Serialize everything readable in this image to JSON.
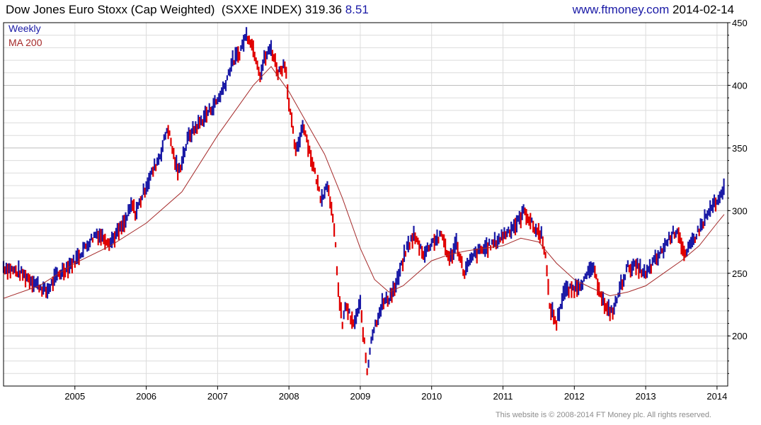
{
  "header": {
    "title": "Dow Jones Euro Stoxx (Cap Weighted)",
    "symbol": "(SXXE INDEX)",
    "last": "319.36",
    "change": "8.51",
    "site": "www.ftmoney.com",
    "date": "2014-02-14"
  },
  "legend": {
    "weekly": "Weekly",
    "ma": "MA 200"
  },
  "footer": "This website is © 2008-2014 FT Money plc. All rights reserved.",
  "colors": {
    "up": "#1a1aa6",
    "down": "#e00000",
    "ma": "#a52a2a",
    "grid": "#dcdcdc",
    "axis": "#000000"
  },
  "chart_data": {
    "type": "line",
    "title": "Dow Jones Euro Stoxx (Cap Weighted) (SXXE INDEX)",
    "ylim": [
      160,
      450
    ],
    "xlim": [
      2004.0,
      2014.15
    ],
    "y_ticks": [
      200,
      250,
      300,
      350,
      400,
      450
    ],
    "x_ticks": [
      "2005",
      "2006",
      "2007",
      "2008",
      "2009",
      "2010",
      "2011",
      "2012",
      "2013",
      "2014"
    ],
    "grid": true,
    "legend_position": "top-left",
    "series": [
      {
        "name": "Weekly",
        "style": "weekly bars (blue up, red down)",
        "x": [
          2004.0,
          2004.25,
          2004.5,
          2004.6,
          2004.75,
          2005.0,
          2005.2,
          2005.3,
          2005.5,
          2005.7,
          2005.8,
          2005.85,
          2006.0,
          2006.2,
          2006.3,
          2006.4,
          2006.45,
          2006.6,
          2006.75,
          2007.0,
          2007.1,
          2007.2,
          2007.3,
          2007.4,
          2007.45,
          2007.55,
          2007.6,
          2007.65,
          2007.75,
          2007.85,
          2007.95,
          2008.0,
          2008.1,
          2008.2,
          2008.3,
          2008.45,
          2008.55,
          2008.65,
          2008.7,
          2008.75,
          2008.8,
          2008.9,
          2009.0,
          2009.1,
          2009.15,
          2009.3,
          2009.4,
          2009.5,
          2009.65,
          2009.75,
          2009.9,
          2010.0,
          2010.15,
          2010.25,
          2010.35,
          2010.45,
          2010.6,
          2010.75,
          2010.9,
          2011.0,
          2011.1,
          2011.2,
          2011.3,
          2011.45,
          2011.55,
          2011.6,
          2011.65,
          2011.75,
          2011.85,
          2012.0,
          2012.15,
          2012.25,
          2012.35,
          2012.45,
          2012.55,
          2012.65,
          2012.75,
          2012.9,
          2013.0,
          2013.1,
          2013.2,
          2013.35,
          2013.45,
          2013.55,
          2013.65,
          2013.8,
          2013.95,
          2014.0,
          2014.05,
          2014.1
        ],
        "y": [
          255,
          250,
          240,
          235,
          248,
          260,
          275,
          282,
          275,
          290,
          305,
          298,
          320,
          345,
          367,
          340,
          330,
          360,
          370,
          388,
          400,
          418,
          425,
          440,
          438,
          420,
          408,
          420,
          430,
          410,
          418,
          385,
          345,
          370,
          345,
          310,
          322,
          275,
          230,
          210,
          225,
          208,
          225,
          170,
          198,
          225,
          230,
          240,
          270,
          280,
          265,
          275,
          280,
          260,
          275,
          250,
          265,
          270,
          275,
          280,
          285,
          290,
          300,
          285,
          280,
          262,
          225,
          210,
          235,
          238,
          245,
          255,
          238,
          220,
          220,
          240,
          255,
          255,
          248,
          258,
          265,
          280,
          285,
          262,
          275,
          290,
          305,
          305,
          310,
          318
        ]
      },
      {
        "name": "MA 200",
        "x": [
          2004.0,
          2004.5,
          2005.0,
          2005.5,
          2006.0,
          2006.5,
          2007.0,
          2007.25,
          2007.5,
          2007.75,
          2008.0,
          2008.25,
          2008.5,
          2008.75,
          2009.0,
          2009.2,
          2009.4,
          2009.6,
          2009.8,
          2010.0,
          2010.25,
          2010.5,
          2010.75,
          2011.0,
          2011.25,
          2011.5,
          2011.75,
          2012.0,
          2012.25,
          2012.5,
          2012.75,
          2013.0,
          2013.25,
          2013.5,
          2013.75,
          2014.0,
          2014.1
        ],
        "y": [
          230,
          240,
          258,
          272,
          290,
          315,
          360,
          380,
          400,
          415,
          395,
          370,
          345,
          310,
          270,
          245,
          235,
          240,
          250,
          260,
          265,
          268,
          270,
          272,
          278,
          275,
          258,
          245,
          238,
          232,
          235,
          240,
          250,
          260,
          272,
          290,
          297
        ]
      }
    ]
  }
}
